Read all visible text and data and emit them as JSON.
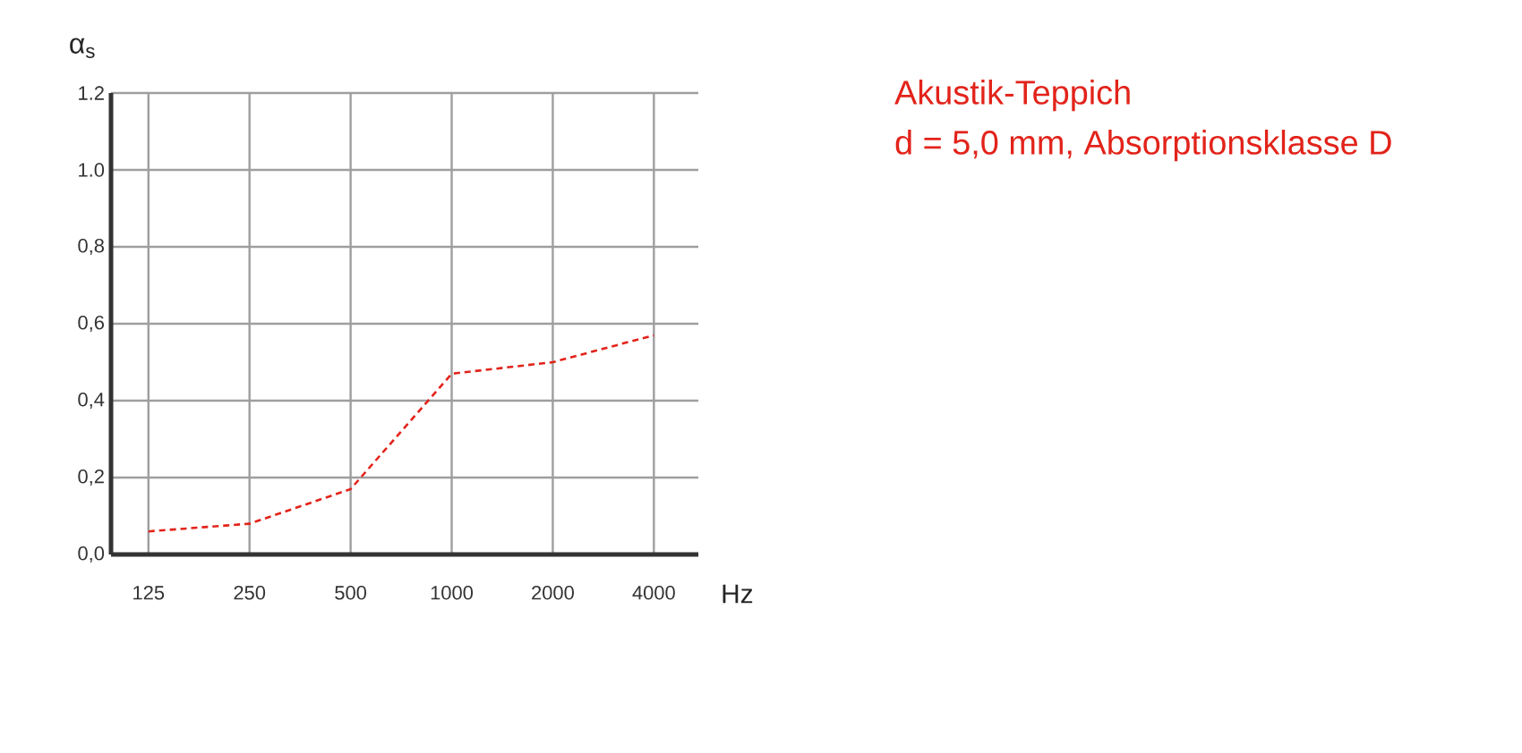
{
  "chart_data": {
    "type": "line",
    "title": "Akustik-Teppich",
    "subtitle": "d = 5,0 mm, Absorptionsklasse D",
    "ylabel": "α$_{s}$",
    "xlabel": "Hz",
    "categories": [
      "125",
      "250",
      "500",
      "1000",
      "2000",
      "4000"
    ],
    "series": [
      {
        "color": "#e2231a",
        "values": [
          0.06,
          0.08,
          0.17,
          0.47,
          0.5,
          0.57
        ]
      }
    ],
    "line_style": "dashed",
    "marker": "none",
    "grid": true,
    "ylim": [
      0,
      1.2
    ],
    "yticks": [
      {
        "value": 0,
        "label": "0,0"
      },
      {
        "value": 0.2,
        "label": "0,2"
      },
      {
        "value": 0.4,
        "label": "0,4"
      },
      {
        "value": 0.6,
        "label": "0,6"
      },
      {
        "value": 0.8,
        "label": "0,8"
      },
      {
        "value": 1.0,
        "label": "1.0"
      },
      {
        "value": 1.2,
        "label": "1.2"
      }
    ]
  }
}
